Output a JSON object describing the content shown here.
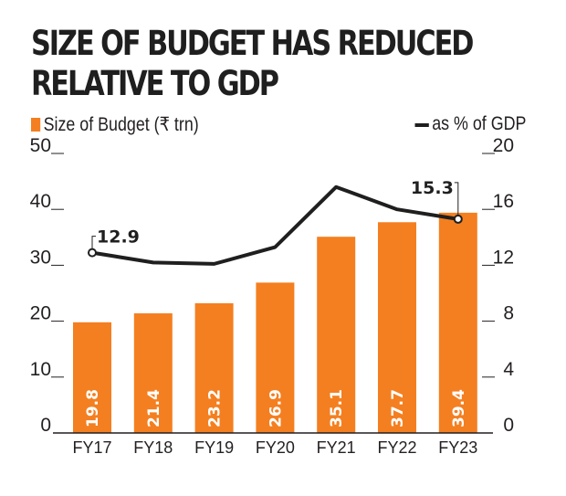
{
  "chart_data": {
    "type": "bar",
    "title": "SIZE OF BUDGET HAS REDUCED RELATIVE TO GDP",
    "categories": [
      "FY17",
      "FY18",
      "FY19",
      "FY20",
      "FY21",
      "FY22",
      "FY23"
    ],
    "series": [
      {
        "name": "Size of Budget (₹ trn)",
        "type": "bar",
        "axis": "left",
        "color": "#f47f20",
        "values": [
          19.8,
          21.4,
          23.2,
          26.9,
          35.1,
          37.7,
          39.4
        ],
        "labels": [
          "19.8",
          "21.4",
          "23.2",
          "26.9",
          "35.1",
          "37.7",
          "39.4"
        ]
      },
      {
        "name": "as % of GDP",
        "type": "line",
        "axis": "right",
        "color": "#1f1f1f",
        "values": [
          12.9,
          12.2,
          12.1,
          13.3,
          17.6,
          16.0,
          15.3
        ],
        "annotations": [
          {
            "index": 0,
            "label": "12.9"
          },
          {
            "index": 6,
            "label": "15.3"
          }
        ]
      }
    ],
    "y_left": {
      "ylim": [
        0,
        50
      ],
      "ticks": [
        "0",
        "10",
        "20",
        "30",
        "40",
        "50"
      ]
    },
    "y_right": {
      "ylim": [
        0,
        20
      ],
      "ticks": [
        "0",
        "4",
        "8",
        "12",
        "16",
        "20"
      ]
    },
    "xlabel": "",
    "ylabel": "",
    "grid": false,
    "legend": "top"
  },
  "title_lines": [
    "SIZE OF BUDGET HAS REDUCED",
    "RELATIVE TO GDP"
  ],
  "legend": {
    "bar_label": "Size of Budget (₹ trn)",
    "line_label": "as % of GDP"
  }
}
